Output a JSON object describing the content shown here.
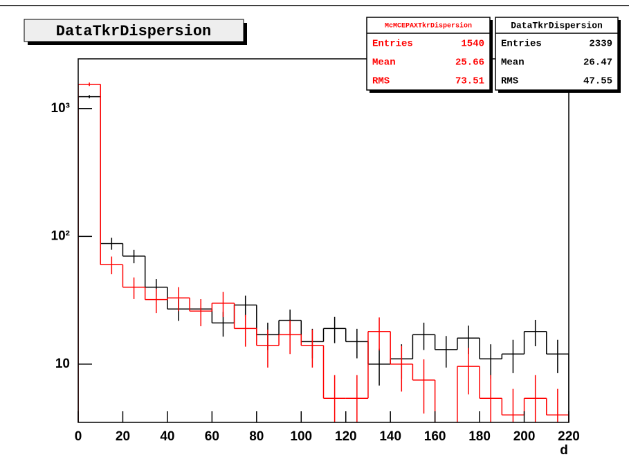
{
  "chart_data": {
    "type": "histogram",
    "title": "DataTkrDispersion",
    "x_label": "d",
    "bins": [
      0,
      10,
      20,
      30,
      40,
      50,
      60,
      70,
      80,
      90,
      100,
      110,
      120,
      130,
      140,
      150,
      160,
      170,
      180,
      190,
      200,
      210,
      220
    ],
    "xlim": [
      0,
      220
    ],
    "xticks": [
      0,
      20,
      40,
      60,
      80,
      100,
      120,
      140,
      160,
      180,
      200,
      220
    ],
    "ylim": [
      3.5,
      2450
    ],
    "yticks": [
      10,
      {
        "value": 100,
        "label": "10²"
      },
      {
        "value": 1000,
        "label": "10³"
      }
    ],
    "log_y": true,
    "series": [
      {
        "name": "DataTkrDispersion",
        "color": "#000000",
        "values": [
          1240,
          88,
          70,
          40,
          27,
          27,
          21,
          29,
          17,
          22,
          15,
          19,
          15,
          10,
          11,
          17,
          13,
          16,
          11,
          12,
          18,
          12
        ],
        "errors": [
          35,
          9.4,
          8.4,
          6.3,
          5.2,
          5.2,
          4.6,
          5.4,
          4.1,
          4.7,
          3.9,
          4.4,
          3.9,
          3.2,
          3.3,
          4.1,
          3.6,
          4,
          3.3,
          3.5,
          4.2,
          3.5
        ]
      },
      {
        "name": "McMCEPAXTkrDispersion",
        "color": "#ff0000",
        "values": [
          1550,
          60,
          40,
          32,
          33,
          26,
          30,
          19,
          14,
          17,
          14,
          5.4,
          5.4,
          18,
          10,
          7.5,
          0,
          9.6,
          5.4,
          4,
          5.4,
          4
        ],
        "errors": [
          48,
          9.5,
          7.7,
          6.9,
          7,
          6.2,
          6.7,
          5.3,
          4.6,
          5,
          4.6,
          2.8,
          2.8,
          5.2,
          3.9,
          3.4,
          0,
          3.8,
          2.8,
          2.4,
          2.8,
          2.4
        ]
      }
    ],
    "stats": [
      {
        "title": "McMCEPAXTkrDispersion",
        "color": "#ff0000",
        "rows": [
          [
            "Entries",
            1540
          ],
          [
            "Mean",
            25.66
          ],
          [
            "RMS",
            73.51
          ]
        ]
      },
      {
        "title": "DataTkrDispersion",
        "color": "#000000",
        "rows": [
          [
            "Entries",
            2339
          ],
          [
            "Mean",
            26.47
          ],
          [
            "RMS",
            47.55
          ]
        ]
      }
    ]
  }
}
